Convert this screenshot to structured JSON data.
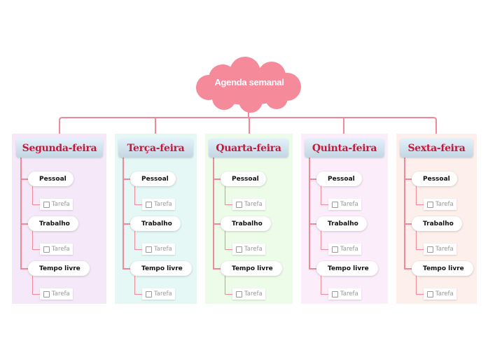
{
  "root": {
    "label": "Agenda semanal",
    "color": "#f48a9a"
  },
  "line_color": "#f08a9a",
  "header_text_color": "#c8173c",
  "days": [
    {
      "label": "Segunda-feira",
      "bg": "#f5e9f9",
      "subtopics": [
        {
          "label": "Pessoal",
          "task": "Tarefa"
        },
        {
          "label": "Trabalho",
          "task": "Tarefa"
        },
        {
          "label": "Tempo livre",
          "task": "Tarefa"
        }
      ]
    },
    {
      "label": "Terça-feira",
      "bg": "#e5f8f6",
      "subtopics": [
        {
          "label": "Pessoal",
          "task": "Tarefa"
        },
        {
          "label": "Trabalho",
          "task": "Tarefa"
        },
        {
          "label": "Tempo livre",
          "task": "Tarefa"
        }
      ]
    },
    {
      "label": "Quarta-feira",
      "bg": "#edfbe9",
      "subtopics": [
        {
          "label": "Pessoal",
          "task": "Tarefa"
        },
        {
          "label": "Trabalho",
          "task": "Tarefa"
        },
        {
          "label": "Tempo livre",
          "task": "Tarefa"
        }
      ]
    },
    {
      "label": "Quinta-feira",
      "bg": "#fbeefa",
      "subtopics": [
        {
          "label": "Pessoal",
          "task": "Tarefa"
        },
        {
          "label": "Trabalho",
          "task": "Tarefa"
        },
        {
          "label": "Tempo livre",
          "task": "Tarefa"
        }
      ]
    },
    {
      "label": "Sexta-feira",
      "bg": "#fdefeb",
      "subtopics": [
        {
          "label": "Pessoal",
          "task": "Tarefa"
        },
        {
          "label": "Trabalho",
          "task": "Tarefa"
        },
        {
          "label": "Tempo livre",
          "task": "Tarefa"
        }
      ]
    }
  ]
}
